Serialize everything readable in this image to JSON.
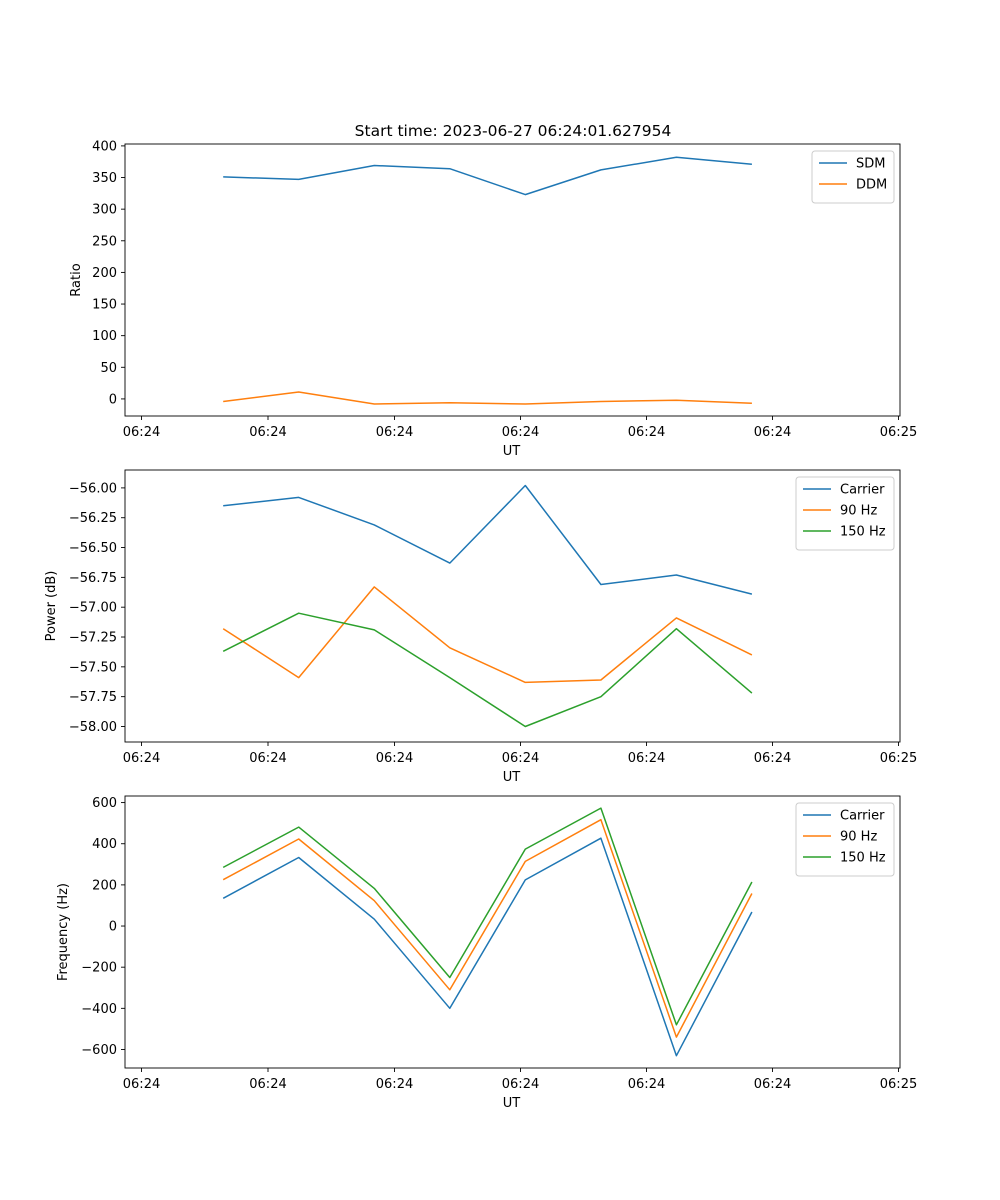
{
  "figure_title": "Start time: 2023-06-27 06:24:01.627954",
  "chart_data": [
    {
      "type": "line",
      "title": "Start time: 2023-06-27 06:24:01.627954",
      "xlabel": "UT",
      "ylabel": "Ratio",
      "x_tick_labels": [
        "06:24",
        "06:24",
        "06:24",
        "06:24",
        "06:24",
        "06:24",
        "06:25"
      ],
      "y_ticks": [
        0,
        50,
        100,
        150,
        200,
        250,
        300,
        350,
        400
      ],
      "y_tick_labels": [
        "0",
        "50",
        "100",
        "150",
        "200",
        "250",
        "300",
        "350",
        "400"
      ],
      "ylim": [
        -27,
        403
      ],
      "xlim": [
        -1.3,
        8.96
      ],
      "x": [
        0,
        1,
        2,
        3,
        4,
        5,
        6,
        7
      ],
      "grid": false,
      "legend_position": "upper right",
      "series": [
        {
          "name": "SDM",
          "color": "#1f77b4",
          "values": [
            351,
            347,
            369,
            364,
            323,
            362,
            382,
            371
          ]
        },
        {
          "name": "DDM",
          "color": "#ff7f0e",
          "values": [
            -4,
            11,
            -8,
            -6,
            -8,
            -4,
            -2,
            -7
          ]
        }
      ]
    },
    {
      "type": "line",
      "title": "",
      "xlabel": "UT",
      "ylabel": "Power (dB)",
      "x_tick_labels": [
        "06:24",
        "06:24",
        "06:24",
        "06:24",
        "06:24",
        "06:24",
        "06:25"
      ],
      "y_ticks": [
        -58.0,
        -57.75,
        -57.5,
        -57.25,
        -57.0,
        -56.75,
        -56.5,
        -56.25,
        -56.0
      ],
      "y_tick_labels": [
        "−58.00",
        "−57.75",
        "−57.50",
        "−57.25",
        "−57.00",
        "−56.75",
        "−56.50",
        "−56.25",
        "−56.00"
      ],
      "ylim": [
        -58.13,
        -55.85
      ],
      "xlim": [
        -1.3,
        8.96
      ],
      "x": [
        0,
        1,
        2,
        3,
        4,
        5,
        6,
        7
      ],
      "grid": false,
      "legend_position": "upper right",
      "series": [
        {
          "name": "Carrier",
          "color": "#1f77b4",
          "values": [
            -56.15,
            -56.08,
            -56.31,
            -56.63,
            -55.98,
            -56.81,
            -56.73,
            -56.89
          ]
        },
        {
          "name": "90 Hz",
          "color": "#ff7f0e",
          "values": [
            -57.18,
            -57.59,
            -56.83,
            -57.34,
            -57.63,
            -57.61,
            -57.09,
            -57.4
          ]
        },
        {
          "name": "150 Hz",
          "color": "#2ca02c",
          "values": [
            -57.37,
            -57.05,
            -57.19,
            -57.59,
            -58.0,
            -57.75,
            -57.18,
            -57.72
          ]
        }
      ]
    },
    {
      "type": "line",
      "title": "",
      "xlabel": "UT",
      "ylabel": "Frequency (Hz)",
      "x_tick_labels": [
        "06:24",
        "06:24",
        "06:24",
        "06:24",
        "06:24",
        "06:24",
        "06:25"
      ],
      "y_ticks": [
        -600,
        -400,
        -200,
        0,
        200,
        400,
        600
      ],
      "y_tick_labels": [
        "−600",
        "−400",
        "−200",
        "0",
        "200",
        "400",
        "600"
      ],
      "ylim": [
        -690,
        632
      ],
      "xlim": [
        -1.3,
        8.96
      ],
      "x": [
        0,
        1,
        2,
        3,
        4,
        5,
        6,
        7
      ],
      "grid": false,
      "legend_position": "upper right",
      "series": [
        {
          "name": "Carrier",
          "color": "#1f77b4",
          "values": [
            135,
            333,
            33,
            -400,
            224,
            427,
            -630,
            68
          ]
        },
        {
          "name": "90 Hz",
          "color": "#ff7f0e",
          "values": [
            225,
            423,
            123,
            -310,
            314,
            517,
            -540,
            158
          ]
        },
        {
          "name": "150 Hz",
          "color": "#2ca02c",
          "values": [
            285,
            481,
            183,
            -250,
            374,
            573,
            -480,
            214
          ]
        }
      ]
    }
  ]
}
